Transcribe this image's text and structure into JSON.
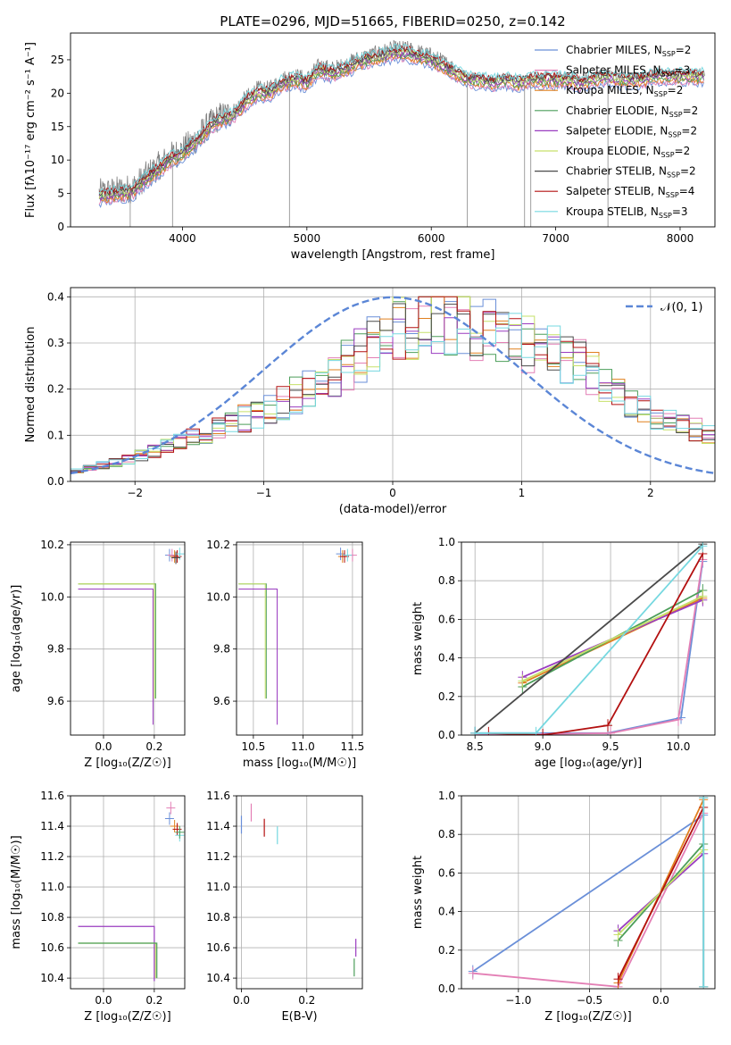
{
  "figure": {
    "title": "PLATE=0296, MJD=51665, FIBERID=0250, z=0.142"
  },
  "model_colors": {
    "Chabrier MILES": "#6a8fd8",
    "Salpeter MILES": "#e37fb5",
    "Kroupa MILES": "#e0801f",
    "Chabrier ELODIE": "#4c9e5a",
    "Salpeter ELODIE": "#9a3cc0",
    "Kroupa ELODIE": "#c6e06a",
    "Chabrier STELIB": "#4a4a4a",
    "Salpeter STELIB": "#b31010",
    "Kroupa STELIB": "#76d8e0"
  },
  "chart_data": [
    {
      "panel": "spectrum",
      "type": "line",
      "ylabel": "Flux [fλ10⁻¹⁷ erg cm⁻² s⁻¹ A⁻¹]",
      "xlabel": "wavelength [Angstrom, rest frame]",
      "xlim": [
        3100,
        8280
      ],
      "ylim": [
        0,
        29
      ],
      "xticks": [
        "4000",
        "5000",
        "6000",
        "7000",
        "8000"
      ],
      "yticks": [
        "0",
        "5",
        "10",
        "15",
        "20",
        "25"
      ],
      "legend": {
        "placement": "top-right",
        "entries": [
          "Chabrier MILES, N_SSP=2",
          "Salpeter MILES, N_SSP=3",
          "Kroupa MILES, N_SSP=2",
          "Chabrier ELODIE, N_SSP=2",
          "Salpeter ELODIE, N_SSP=2",
          "Kroupa ELODIE, N_SSP=2",
          "Chabrier STELIB, N_SSP=2",
          "Salpeter STELIB, N_SSP=4",
          "Kroupa STELIB, N_SSP=3"
        ]
      },
      "observed_envelope": {
        "x": [
          3330,
          3500,
          3600,
          3700,
          3800,
          3900,
          4000,
          4100,
          4200,
          4300,
          4400,
          4500,
          4600,
          4700,
          4800,
          4900,
          5000,
          5100,
          5200,
          5300,
          5400,
          5500,
          5600,
          5700,
          5800,
          5900,
          6000,
          6100,
          6200,
          6300,
          6400,
          6500,
          6600,
          6700,
          6800,
          6900,
          7000,
          7100,
          7200,
          7300,
          7400,
          7500,
          7600,
          7700,
          7800,
          7900,
          8000,
          8100,
          8200
        ],
        "y": [
          5.0,
          5.5,
          5.8,
          7.5,
          9.0,
          10.5,
          11.5,
          13.0,
          15.0,
          16.5,
          17.0,
          19.0,
          20.5,
          20.5,
          22.0,
          22.5,
          22.0,
          24.0,
          23.5,
          24.0,
          25.0,
          25.5,
          26.0,
          26.5,
          26.5,
          26.0,
          25.5,
          24.5,
          23.5,
          22.5,
          22.5,
          22.0,
          22.5,
          22.0,
          22.5,
          22.5,
          22.5,
          22.5,
          22.0,
          22.5,
          23.0,
          22.5,
          22.5,
          22.5,
          23.0,
          23.0,
          23.0,
          23.0,
          23.0
        ]
      },
      "masked_pixels_x": [
        3580,
        3920,
        4860,
        6290,
        6750,
        6800,
        7420
      ]
    },
    {
      "panel": "residuals",
      "type": "line",
      "ylabel": "Normed distribution",
      "xlabel": "(data-model)/error",
      "xlim": [
        -2.5,
        2.5
      ],
      "ylim": [
        0,
        0.42
      ],
      "xticks": [
        "−2",
        "−1",
        "0",
        "1",
        "2"
      ],
      "yticks": [
        "0.0",
        "0.1",
        "0.2",
        "0.3",
        "0.4"
      ],
      "legend": {
        "placement": "top-right",
        "entries": [
          "𝒩(0, 1)"
        ]
      },
      "histogram_bin_width": 0.1,
      "envelope": {
        "x": [
          -2.5,
          -2.0,
          -1.5,
          -1.0,
          -0.5,
          0.0,
          0.3,
          0.5,
          1.0,
          1.5,
          2.0,
          2.5
        ],
        "y": [
          0.02,
          0.05,
          0.1,
          0.15,
          0.22,
          0.32,
          0.35,
          0.35,
          0.3,
          0.25,
          0.14,
          0.1
        ]
      }
    },
    {
      "panel": "age-vs-Z",
      "type": "scatter",
      "ylabel": "age  [log₁₀(age/yr)]",
      "xlabel": "Z [log₁₀(Z/Z☉)]",
      "xlim": [
        -0.13,
        0.32
      ],
      "ylim": [
        9.47,
        10.21
      ],
      "xticks": [
        "0.0",
        "0.2"
      ],
      "yticks": [
        "9.6",
        "9.8",
        "10.0",
        "10.2"
      ]
    },
    {
      "panel": "age-vs-mass",
      "type": "scatter",
      "ylabel": "",
      "xlabel": "mass [log₁₀(M/M☉)]",
      "xlim": [
        10.33,
        11.6
      ],
      "ylim": [
        9.47,
        10.21
      ],
      "xticks": [
        "10.5",
        "11.0",
        "11.5"
      ],
      "yticks": [
        "9.6",
        "9.8",
        "10.0",
        "10.2"
      ]
    },
    {
      "panel": "massweight-vs-age",
      "type": "line",
      "ylabel": "mass weight",
      "xlabel": "age  [log₁₀(age/yr)]",
      "xlim": [
        8.4,
        10.27
      ],
      "ylim": [
        0,
        1
      ],
      "xticks": [
        "8.5",
        "9.0",
        "9.5",
        "10.0"
      ],
      "yticks": [
        "0.0",
        "0.2",
        "0.4",
        "0.6",
        "0.8",
        "1.0"
      ],
      "series": [
        {
          "model": "Chabrier MILES",
          "x": [
            8.5,
            9.48,
            10.02,
            10.18
          ],
          "y": [
            0.01,
            0.01,
            0.09,
            0.9
          ]
        },
        {
          "model": "Salpeter MILES",
          "x": [
            8.5,
            9.5,
            10.0,
            10.18
          ],
          "y": [
            0.0,
            0.01,
            0.08,
            0.91
          ]
        },
        {
          "model": "Kroupa MILES",
          "x": [
            8.85,
            10.18
          ],
          "y": [
            0.27,
            0.71
          ]
        },
        {
          "model": "Chabrier ELODIE",
          "x": [
            8.85,
            10.18
          ],
          "y": [
            0.25,
            0.75
          ]
        },
        {
          "model": "Salpeter ELODIE",
          "x": [
            8.85,
            10.18
          ],
          "y": [
            0.3,
            0.7
          ]
        },
        {
          "model": "Kroupa ELODIE",
          "x": [
            8.85,
            10.18
          ],
          "y": [
            0.28,
            0.72
          ]
        },
        {
          "model": "Chabrier STELIB",
          "x": [
            8.5,
            10.18
          ],
          "y": [
            0.01,
            0.99
          ]
        },
        {
          "model": "Salpeter STELIB",
          "x": [
            8.6,
            9.0,
            9.48,
            10.18
          ],
          "y": [
            0.01,
            0.0,
            0.05,
            0.94
          ]
        },
        {
          "model": "Kroupa STELIB",
          "x": [
            8.5,
            8.95,
            10.18
          ],
          "y": [
            0.01,
            0.01,
            0.98
          ]
        }
      ]
    },
    {
      "panel": "mass-vs-Z",
      "type": "scatter",
      "ylabel": "mass [log₁₀(M/M☉)]",
      "xlabel": "Z [log₁₀(Z/Z☉)]",
      "xlim": [
        -0.13,
        0.32
      ],
      "ylim": [
        10.33,
        11.6
      ],
      "xticks": [
        "0.0",
        "0.2"
      ],
      "yticks": [
        "10.4",
        "10.6",
        "10.8",
        "11.0",
        "11.2",
        "11.4",
        "11.6"
      ]
    },
    {
      "panel": "mass-vs-EBV",
      "type": "scatter",
      "ylabel": "",
      "xlabel": "E(B-V)",
      "xlim": [
        -0.015,
        0.37
      ],
      "ylim": [
        10.33,
        11.6
      ],
      "xticks": [
        "0.0",
        "0.2"
      ],
      "yticks": [
        "10.4",
        "10.6",
        "10.8",
        "11.0",
        "11.2",
        "11.4",
        "11.6"
      ],
      "points": [
        {
          "x": 0.0,
          "y": 11.41
        },
        {
          "x": 0.03,
          "y": 11.49
        },
        {
          "x": 0.07,
          "y": 11.39
        },
        {
          "x": 0.11,
          "y": 11.34
        },
        {
          "x": 0.345,
          "y": 10.47
        },
        {
          "x": 0.35,
          "y": 10.6
        }
      ]
    },
    {
      "panel": "massweight-vs-Z",
      "type": "line",
      "ylabel": "mass weight",
      "xlabel": "Z [log₁₀(Z/Z☉)]",
      "xlim": [
        -1.4,
        0.38
      ],
      "ylim": [
        0,
        1
      ],
      "xticks": [
        "−1.0",
        "−0.5",
        "0.0"
      ],
      "yticks": [
        "0.0",
        "0.2",
        "0.4",
        "0.6",
        "0.8",
        "1.0"
      ],
      "series": [
        {
          "model": "Chabrier MILES",
          "x": [
            -1.32,
            0.3
          ],
          "y": [
            0.09,
            0.9
          ]
        },
        {
          "model": "Salpeter MILES",
          "x": [
            -1.32,
            -0.3,
            0.3
          ],
          "y": [
            0.08,
            0.01,
            0.91
          ]
        },
        {
          "model": "Kroupa MILES",
          "x": [
            -0.3,
            0.3
          ],
          "y": [
            0.03,
            0.98
          ]
        },
        {
          "model": "Chabrier ELODIE",
          "x": [
            -0.3,
            0.3
          ],
          "y": [
            0.25,
            0.75
          ]
        },
        {
          "model": "Salpeter ELODIE",
          "x": [
            -0.3,
            0.3
          ],
          "y": [
            0.3,
            0.7
          ]
        },
        {
          "model": "Kroupa ELODIE",
          "x": [
            -0.3,
            0.3
          ],
          "y": [
            0.28,
            0.72
          ]
        },
        {
          "model": "Chabrier STELIB",
          "x": [
            0.3,
            0.3
          ],
          "y": [
            0.01,
            0.99
          ]
        },
        {
          "model": "Salpeter STELIB",
          "x": [
            -0.3,
            0.3
          ],
          "y": [
            0.05,
            0.94
          ]
        },
        {
          "model": "Kroupa STELIB",
          "x": [
            0.3,
            0.3
          ],
          "y": [
            0.01,
            0.99
          ]
        }
      ]
    }
  ]
}
